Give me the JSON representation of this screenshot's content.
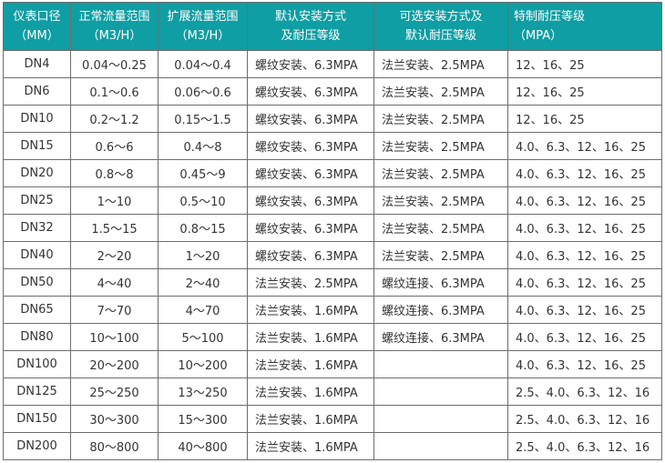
{
  "header": {
    "accent_color": "#0e9ea3",
    "columns": [
      {
        "line1": "仪表口径",
        "line2": "（MM）"
      },
      {
        "line1": "正常流量范围",
        "line2": "（M3/H）"
      },
      {
        "line1": "扩展流量范围",
        "line2": "（M3/H）"
      },
      {
        "line1": "默认安装方式",
        "line2": "及耐压等级"
      },
      {
        "line1": "可选安装方式及",
        "line2": "默认耐压等级"
      },
      {
        "line1": "特制耐压等级",
        "line2": "（MPA）"
      }
    ]
  },
  "rows": [
    [
      "DN4",
      "0.04～0.25",
      "0.04～0.4",
      "螺纹安装、6.3MPA",
      "法兰安装、2.5MPA",
      "12、16、25"
    ],
    [
      "DN6",
      "0.1～0.6",
      "0.06～0.6",
      "螺纹安装、6.3MPA",
      "法兰安装、2.5MPA",
      "12、16、25"
    ],
    [
      "DN10",
      "0.2～1.2",
      "0.15～1.5",
      "螺纹安装、6.3MPA",
      "法兰安装、2.5MPA",
      "12、16、25"
    ],
    [
      "DN15",
      "0.6～6",
      "0.4～8",
      "螺纹安装、6.3MPA",
      "法兰安装、2.5MPA",
      "4.0、6.3、12、16、25"
    ],
    [
      "DN20",
      "0.8～8",
      "0.45～9",
      "螺纹安装、6.3MPA",
      "法兰安装、2.5MPA",
      "4.0、6.3、12、16、25"
    ],
    [
      "DN25",
      "1～10",
      "0.5～10",
      "螺纹安装、6.3MPA",
      "法兰安装、2.5MPA",
      "4.0、6.3、12、16、25"
    ],
    [
      "DN32",
      "1.5～15",
      "0.8～15",
      "螺纹安装、6.3MPA",
      "法兰安装、2.5MPA",
      "4.0、6.3、12、16、25"
    ],
    [
      "DN40",
      "2～20",
      "1～20",
      "螺纹安装、6.3MPA",
      "法兰安装、2.5MPA",
      "4.0、6.3、12、16、25"
    ],
    [
      "DN50",
      "4～40",
      "2～40",
      "法兰安装、2.5MPA",
      "螺纹连接、6.3MPA",
      "4.0、6.3、12、16、25"
    ],
    [
      "DN65",
      "7～70",
      "4～70",
      "法兰安装、1.6MPA",
      "螺纹连接、6.3MPA",
      "4.0、6.3、12、16、25"
    ],
    [
      "DN80",
      "10～100",
      "5～100",
      "法兰安装、1.6MPA",
      "螺纹连接、6.3MPA",
      "4.0、6.3、12、16、25"
    ],
    [
      "DN100",
      "20～200",
      "10～200",
      "法兰安装、1.6MPA",
      "",
      "4.0、6.3、12、16、25"
    ],
    [
      "DN125",
      "25～250",
      "13～250",
      "法兰安装、1.6MPA",
      "",
      "2.5、4.0、6.3、12、16"
    ],
    [
      "DN150",
      "30～300",
      "15～300",
      "法兰安装、1.6MPA",
      "",
      "2.5、4.0、6.3、12、16"
    ],
    [
      "DN200",
      "80～800",
      "40～800",
      "法兰安装、1.6MPA",
      "",
      "2.5、4.0、6.3、12、16"
    ]
  ]
}
